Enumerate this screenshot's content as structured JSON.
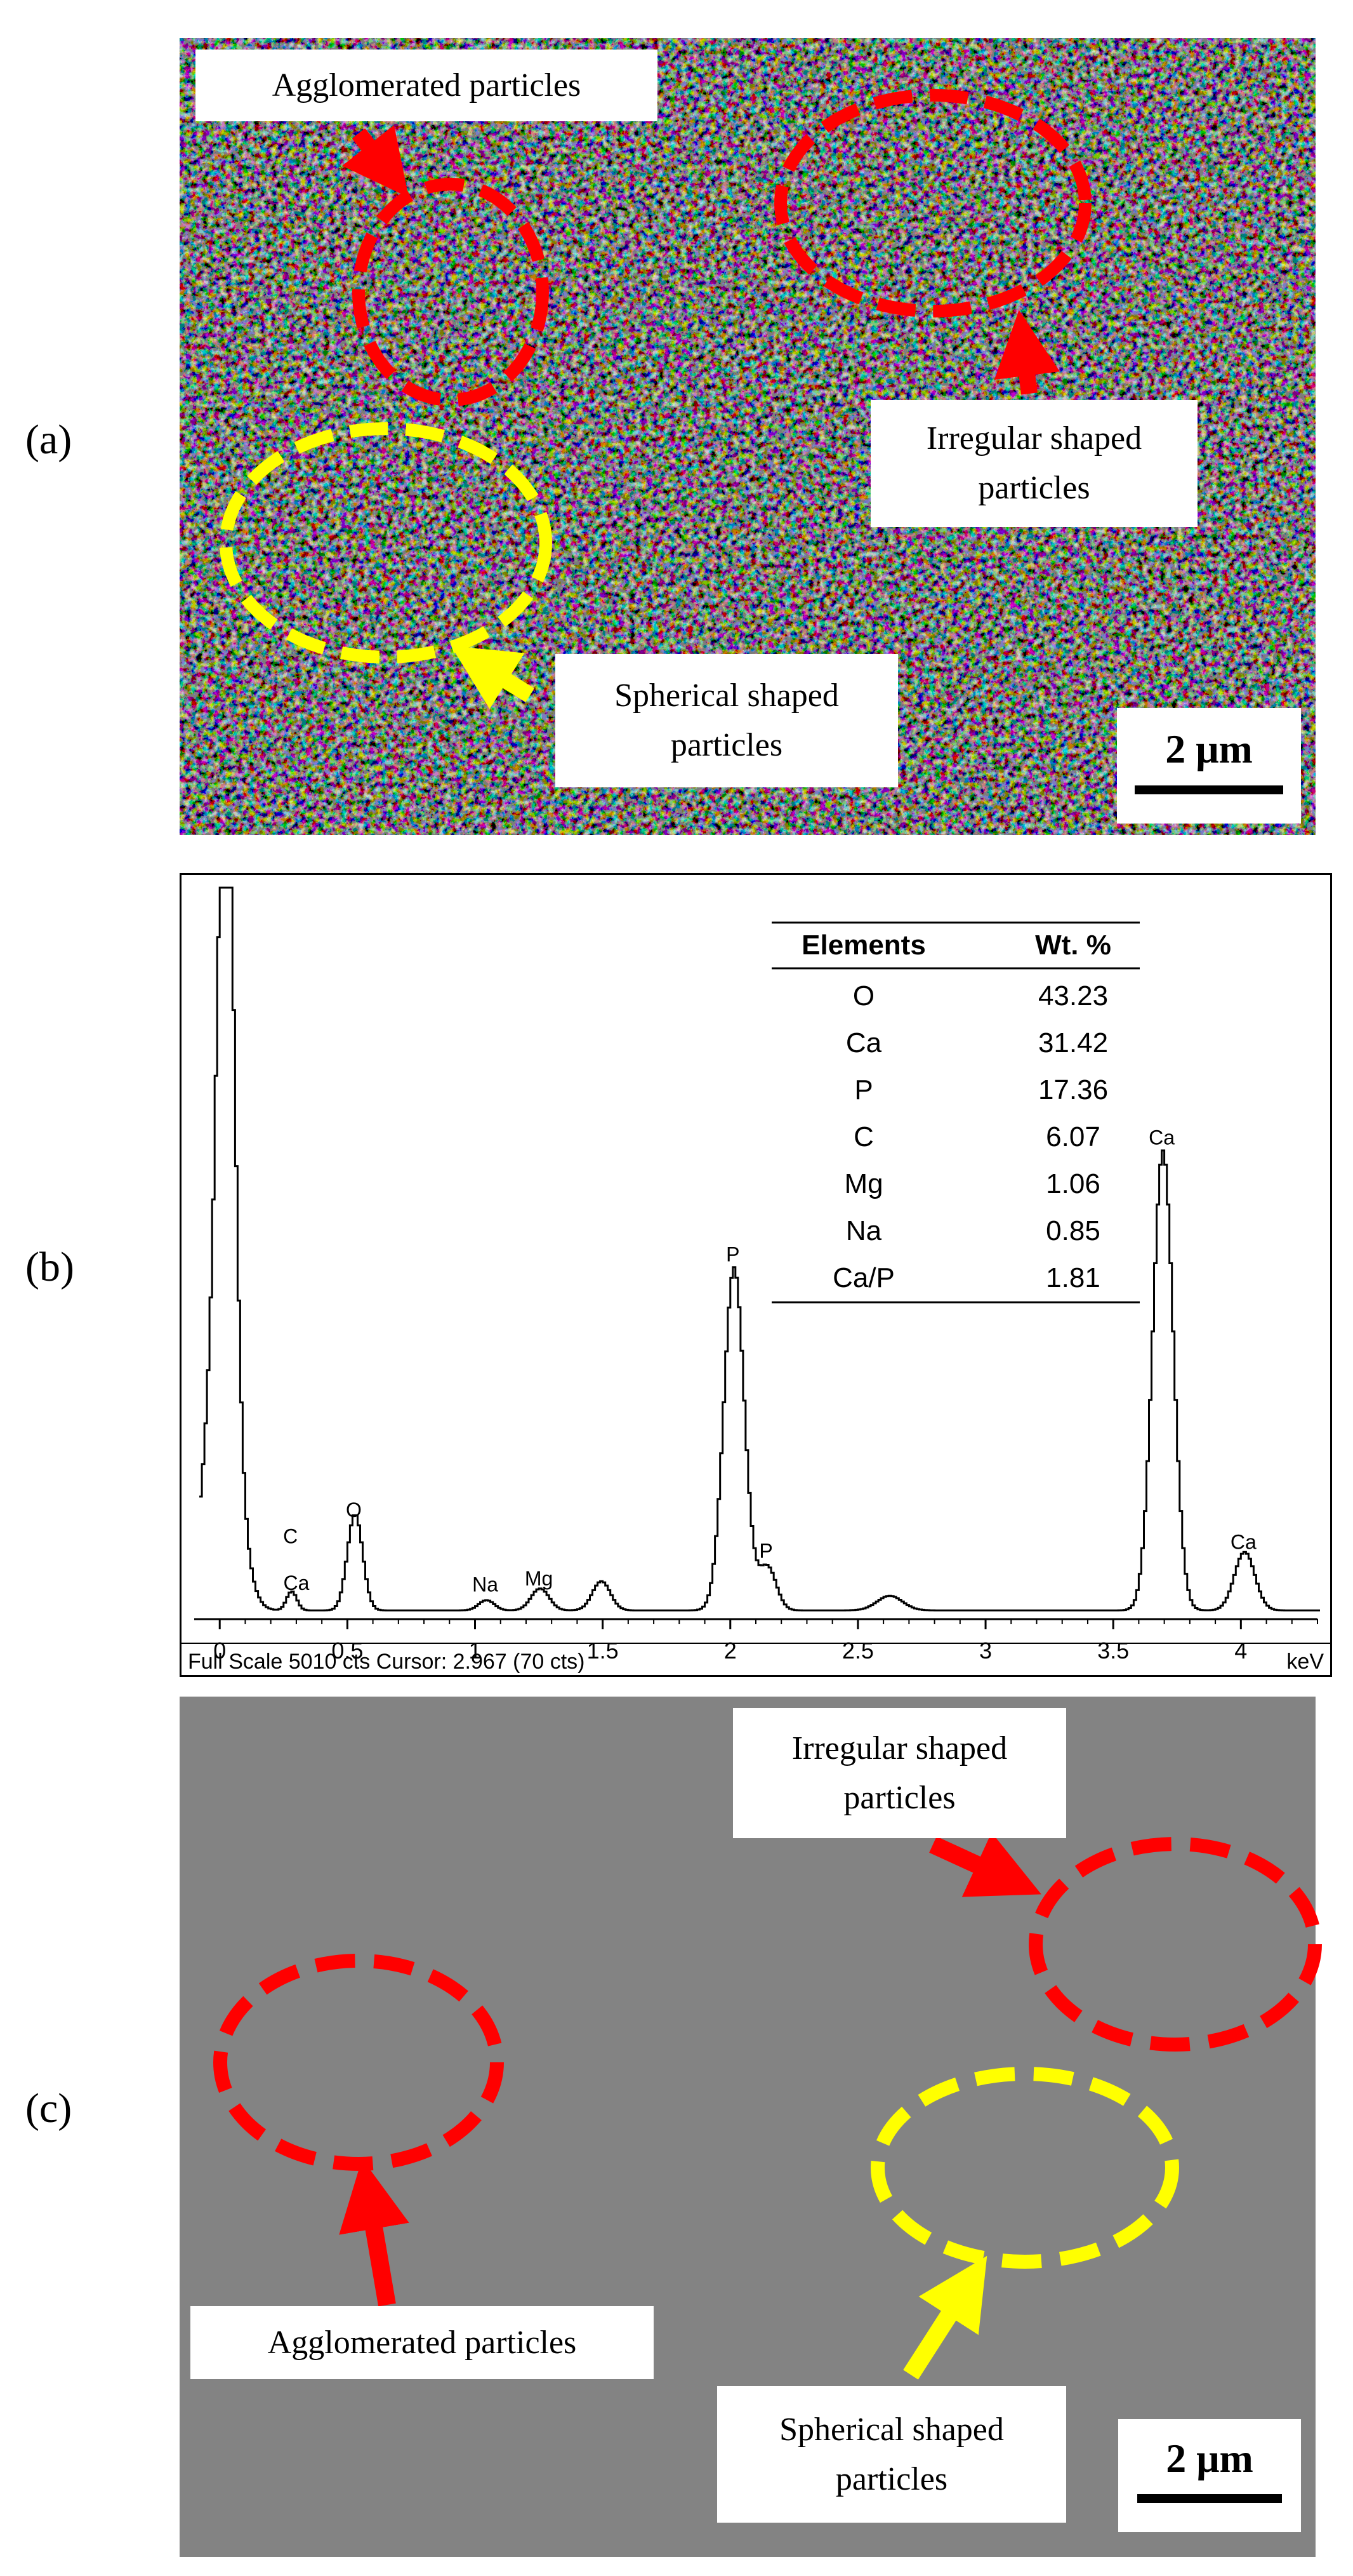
{
  "panels": {
    "a": {
      "letter": "(a)",
      "labels": {
        "agglomerated": "Agglomerated particles",
        "irregular": "Irregular shaped\nparticles",
        "spherical": "Spherical shaped\nparticles"
      },
      "scale": "2 μm"
    },
    "b": {
      "letter": "(b)"
    },
    "c": {
      "letter": "(c)",
      "labels": {
        "irregular": "Irregular shaped\nparticles",
        "agglomerated": "Agglomerated particles",
        "spherical": "Spherical shaped\nparticles"
      },
      "scale": "2 μm"
    }
  },
  "colors": {
    "red_marker": "#ff0000",
    "yellow_marker": "#ffff00",
    "sem_a_base": "#3a3a3a",
    "sem_c_base": "#4a4a4a"
  },
  "chart_data": {
    "type": "line",
    "xlabel": "keV",
    "xlim": [
      -0.1,
      4.3
    ],
    "ylim": [
      0,
      5010
    ],
    "x_ticks": [
      "0",
      "0.5",
      "1",
      "1.5",
      "2",
      "2.5",
      "3",
      "3.5",
      "4"
    ],
    "x_tick_values": [
      0,
      0.5,
      1,
      1.5,
      2,
      2.5,
      3,
      3.5,
      4
    ],
    "footer": "Full Scale 5010 cts Cursor: 2.967  (70 cts)",
    "grid": false,
    "peaks": [
      {
        "x": 0.02,
        "y": 4450,
        "w": 0.03
      },
      {
        "x": 0.0,
        "y": 2000,
        "w": 0.06
      },
      {
        "x": 0.277,
        "y": 130,
        "w": 0.02
      },
      {
        "x": 0.525,
        "y": 660,
        "w": 0.03
      },
      {
        "x": 1.04,
        "y": 70,
        "w": 0.03
      },
      {
        "x": 1.25,
        "y": 150,
        "w": 0.035
      },
      {
        "x": 1.49,
        "y": 200,
        "w": 0.035
      },
      {
        "x": 2.01,
        "y": 2350,
        "w": 0.04
      },
      {
        "x": 2.14,
        "y": 300,
        "w": 0.035
      },
      {
        "x": 2.62,
        "y": 100,
        "w": 0.05
      },
      {
        "x": 3.69,
        "y": 3150,
        "w": 0.04
      },
      {
        "x": 4.01,
        "y": 400,
        "w": 0.04
      }
    ],
    "background": 60,
    "peak_labels": [
      {
        "text": "C",
        "x": 0.277,
        "y": 520
      },
      {
        "text": "Ca",
        "x": 0.3,
        "y": 200
      },
      {
        "text": "O",
        "x": 0.525,
        "y": 700
      },
      {
        "text": "Na",
        "x": 1.04,
        "y": 190
      },
      {
        "text": "Mg",
        "x": 1.25,
        "y": 230
      },
      {
        "text": "P",
        "x": 2.01,
        "y": 2450
      },
      {
        "text": "P",
        "x": 2.14,
        "y": 420
      },
      {
        "text": "Ca",
        "x": 3.69,
        "y": 3250
      },
      {
        "text": "Ca",
        "x": 4.01,
        "y": 480
      }
    ],
    "table": {
      "headers": [
        "Elements",
        "Wt. %"
      ],
      "rows": [
        [
          "O",
          "43.23"
        ],
        [
          "Ca",
          "31.42"
        ],
        [
          "P",
          "17.36"
        ],
        [
          "C",
          "6.07"
        ],
        [
          "Mg",
          "1.06"
        ],
        [
          "Na",
          "0.85"
        ],
        [
          "Ca/P",
          "1.81"
        ]
      ]
    }
  }
}
